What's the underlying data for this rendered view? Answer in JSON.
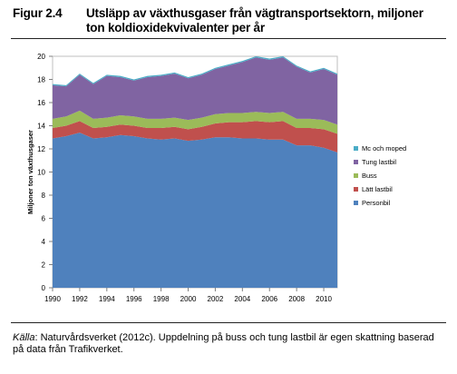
{
  "figure": {
    "label": "Figur 2.4",
    "title": "Utsläpp av växthusgaser från vägtransportsektorn, miljoner ton koldioxidekvivalenter per år"
  },
  "source": {
    "prefix": "Källa",
    "text": ": Naturvårdsverket (2012c). Uppdelning på buss och tung lastbil är egen skattning baserad på data från Trafikverket."
  },
  "chart_data": {
    "type": "area",
    "stacked": true,
    "title": "Utsläpp av växthusgaser från vägtransportsektorn, miljoner ton koldioxidekvivalenter per år",
    "xlabel": "",
    "ylabel": "Miljoner ton växthusgaser",
    "x": [
      1990,
      1991,
      1992,
      1993,
      1994,
      1995,
      1996,
      1997,
      1998,
      1999,
      2000,
      2001,
      2002,
      2003,
      2004,
      2005,
      2006,
      2007,
      2008,
      2009,
      2010,
      2011
    ],
    "xticks": [
      1990,
      1992,
      1994,
      1996,
      1998,
      2000,
      2002,
      2004,
      2006,
      2008,
      2010
    ],
    "yticks": [
      0,
      2,
      4,
      6,
      8,
      10,
      12,
      14,
      16,
      18,
      20
    ],
    "xlim": [
      1990,
      2011
    ],
    "ylim": [
      0,
      20
    ],
    "grid": false,
    "legend_position": "right",
    "series": [
      {
        "name": "Personbil",
        "color": "#4f81bd",
        "values": [
          12.9,
          13.1,
          13.4,
          12.9,
          13.0,
          13.2,
          13.1,
          12.9,
          12.8,
          12.9,
          12.7,
          12.8,
          13.0,
          13.0,
          12.9,
          12.9,
          12.8,
          12.8,
          12.3,
          12.3,
          12.1,
          11.7
        ]
      },
      {
        "name": "Lätt lastbil",
        "color": "#c0504d",
        "values": [
          0.9,
          0.9,
          1.0,
          0.9,
          0.9,
          0.9,
          0.9,
          0.9,
          1.0,
          1.0,
          1.0,
          1.1,
          1.2,
          1.3,
          1.4,
          1.5,
          1.5,
          1.6,
          1.5,
          1.5,
          1.6,
          1.6
        ]
      },
      {
        "name": "Buss",
        "color": "#9bbb59",
        "values": [
          0.8,
          0.8,
          0.9,
          0.8,
          0.8,
          0.8,
          0.8,
          0.8,
          0.8,
          0.8,
          0.8,
          0.8,
          0.8,
          0.8,
          0.8,
          0.8,
          0.8,
          0.8,
          0.8,
          0.8,
          0.8,
          0.8
        ]
      },
      {
        "name": "Tung lastbil",
        "color": "#8064a2",
        "values": [
          2.9,
          2.6,
          3.1,
          3.0,
          3.6,
          3.3,
          3.1,
          3.6,
          3.7,
          3.8,
          3.6,
          3.7,
          3.9,
          4.1,
          4.4,
          4.7,
          4.6,
          4.7,
          4.5,
          4.0,
          4.4,
          4.3
        ]
      },
      {
        "name": "Mc och moped",
        "color": "#4bacc6",
        "values": [
          0.1,
          0.1,
          0.1,
          0.1,
          0.1,
          0.1,
          0.1,
          0.1,
          0.1,
          0.1,
          0.1,
          0.1,
          0.1,
          0.1,
          0.1,
          0.1,
          0.1,
          0.1,
          0.1,
          0.1,
          0.1,
          0.1
        ]
      }
    ]
  }
}
